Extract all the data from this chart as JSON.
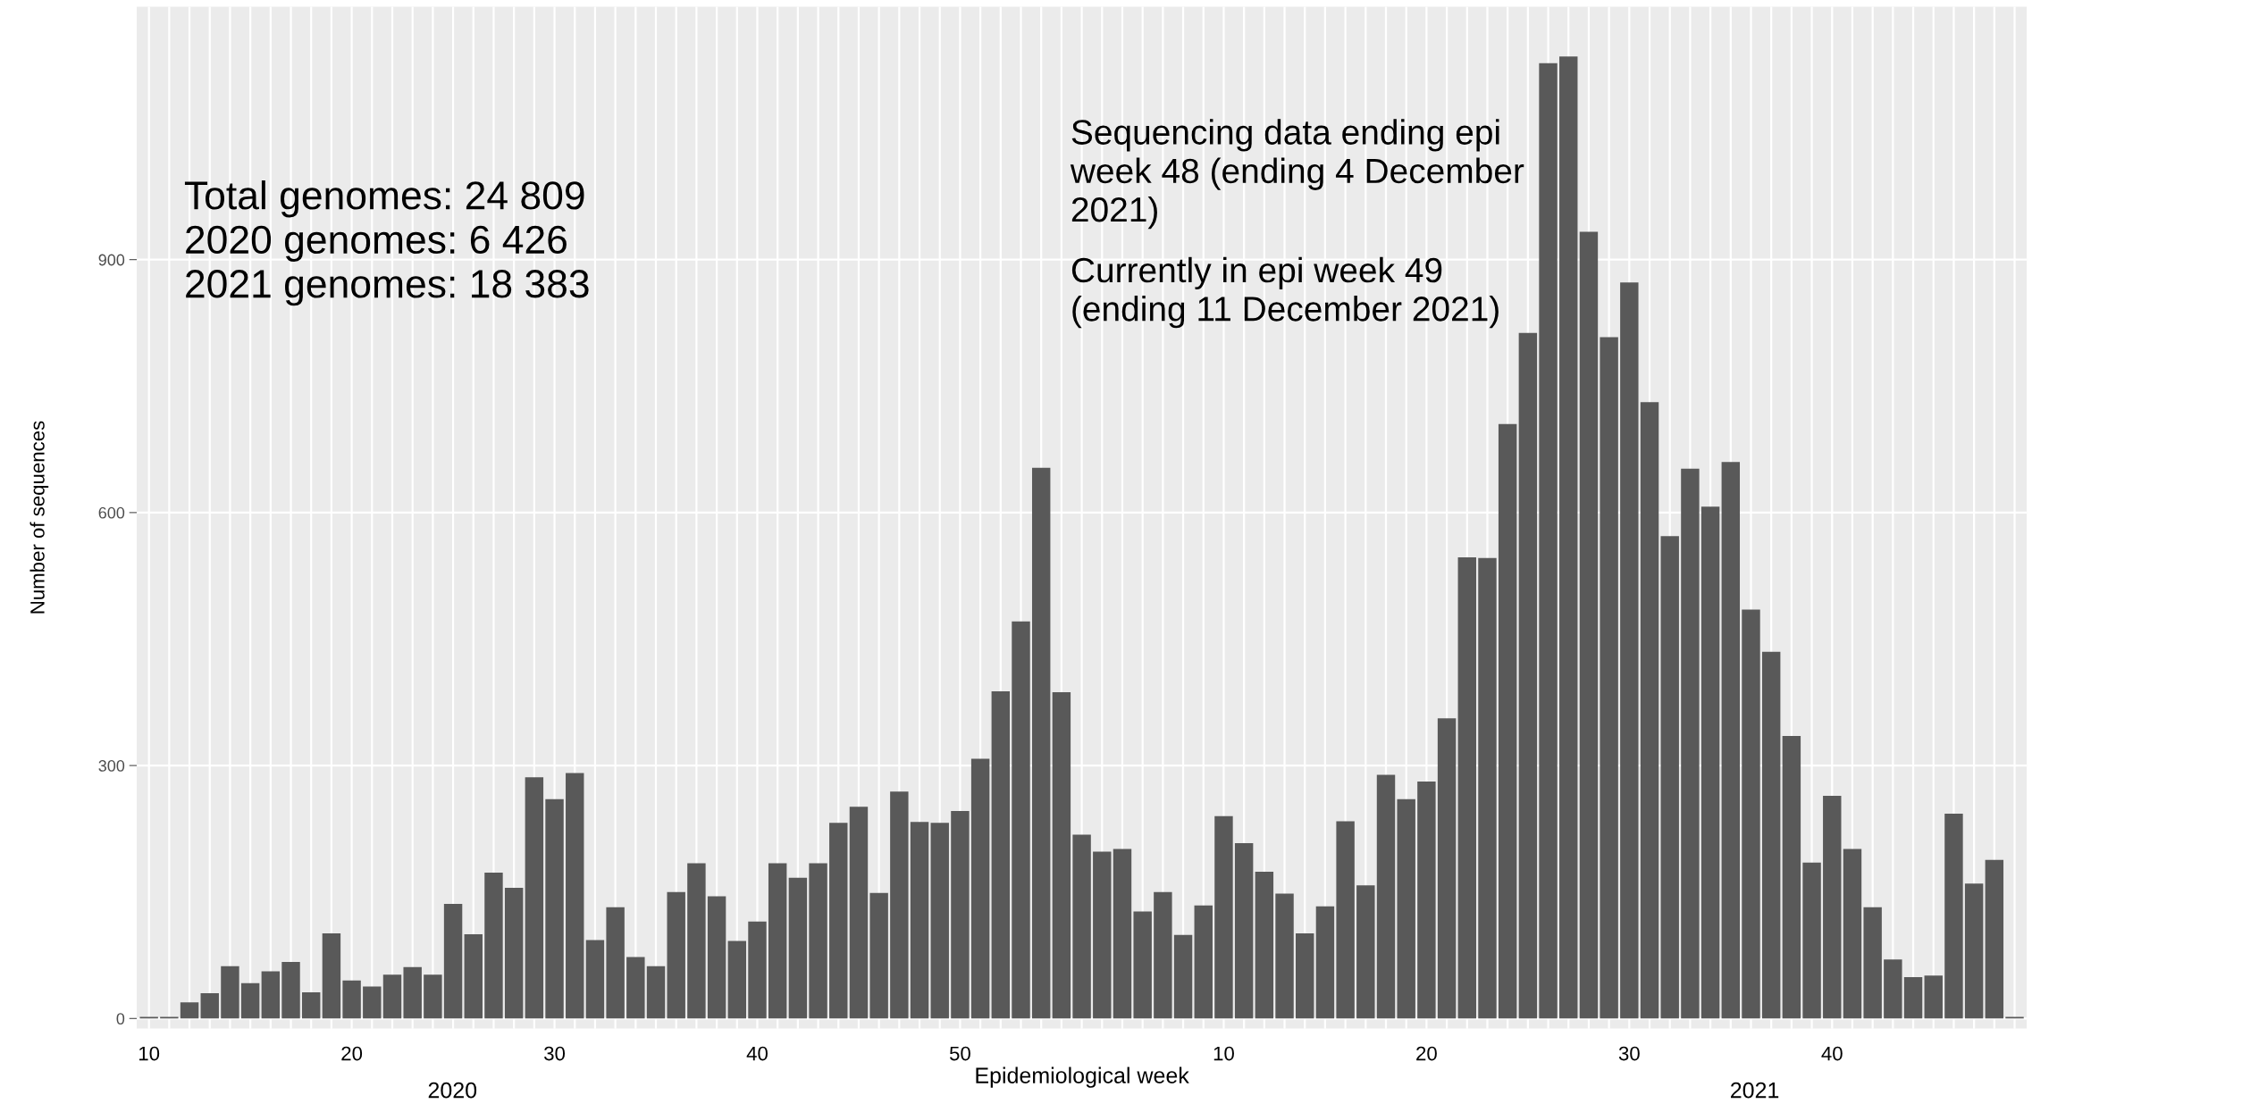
{
  "chart_data": {
    "type": "bar",
    "xlabel": "Epidemiological week",
    "ylabel": "Number of sequences",
    "categories": [
      "10",
      null,
      null,
      null,
      null,
      null,
      null,
      null,
      null,
      null,
      "20",
      null,
      null,
      null,
      null,
      null,
      null,
      null,
      null,
      null,
      "30",
      null,
      null,
      null,
      null,
      null,
      null,
      null,
      null,
      null,
      "40",
      null,
      null,
      null,
      null,
      null,
      null,
      null,
      null,
      null,
      "50",
      null,
      null,
      null,
      null,
      null,
      null,
      null,
      null,
      null,
      null,
      null,
      null,
      "10",
      null,
      null,
      null,
      null,
      null,
      null,
      null,
      null,
      null,
      "20",
      null,
      null,
      null,
      null,
      null,
      null,
      null,
      null,
      null,
      "30",
      null,
      null,
      null,
      null,
      null,
      null,
      null,
      null,
      null,
      "40",
      null,
      null,
      null,
      null,
      null,
      null,
      null,
      null,
      null
    ],
    "values": [
      2,
      2,
      19,
      30,
      62,
      42,
      56,
      67,
      31,
      101,
      45,
      38,
      52,
      61,
      52,
      136,
      100,
      173,
      155,
      286,
      260,
      291,
      93,
      132,
      73,
      62,
      150,
      184,
      145,
      92,
      115,
      184,
      167,
      184,
      232,
      251,
      149,
      269,
      233,
      232,
      246,
      308,
      388,
      471,
      653,
      387,
      218,
      198,
      201,
      127,
      150,
      99,
      134,
      240,
      208,
      174,
      148,
      101,
      133,
      234,
      158,
      289,
      260,
      281,
      356,
      547,
      546,
      705,
      813,
      1133,
      1141,
      933,
      808,
      873,
      731,
      572,
      652,
      607,
      660,
      485,
      435,
      335,
      185,
      264,
      201,
      132,
      70,
      49,
      51,
      243,
      160,
      188,
      2
    ],
    "color": "#595959",
    "ylim": [
      -12,
      1200
    ],
    "yticks": [
      0,
      300,
      600,
      900
    ],
    "grid": true,
    "annotations": [
      "Total genomes: 24 809\n2020 genomes: 6 426\n2021 genomes: 18 383",
      "Sequencing data ending epi\nweek 48 (ending 4 December\n2021)",
      "Currently in epi week 49\n(ending 11 December 2021)",
      "2020",
      "2021"
    ]
  }
}
